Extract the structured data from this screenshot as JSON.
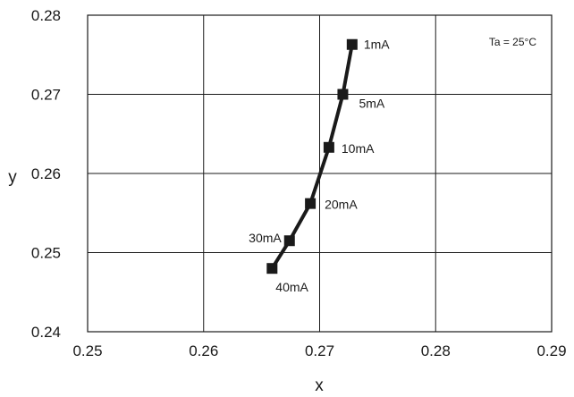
{
  "chart_data": {
    "type": "line",
    "xlabel": "x",
    "ylabel": "y",
    "xlim": [
      0.25,
      0.29
    ],
    "ylim": [
      0.24,
      0.28
    ],
    "x_ticks": [
      "0.25",
      "0.26",
      "0.27",
      "0.28",
      "0.29"
    ],
    "y_ticks": [
      "0.24",
      "0.25",
      "0.26",
      "0.27",
      "0.28"
    ],
    "grid": true,
    "annotation": "Ta = 25°C",
    "series": [
      {
        "points": [
          {
            "x": 0.2728,
            "y": 0.2763,
            "label": "1mA"
          },
          {
            "x": 0.272,
            "y": 0.27,
            "label": "5mA"
          },
          {
            "x": 0.2708,
            "y": 0.2633,
            "label": "10mA"
          },
          {
            "x": 0.2692,
            "y": 0.2562,
            "label": "20mA"
          },
          {
            "x": 0.2674,
            "y": 0.2515,
            "label": "30mA"
          },
          {
            "x": 0.2659,
            "y": 0.248,
            "label": "40mA"
          }
        ]
      }
    ],
    "colors": {
      "line": "#1a1a1a",
      "marker": "#1a1a1a",
      "grid": "#1a1a1a"
    }
  }
}
